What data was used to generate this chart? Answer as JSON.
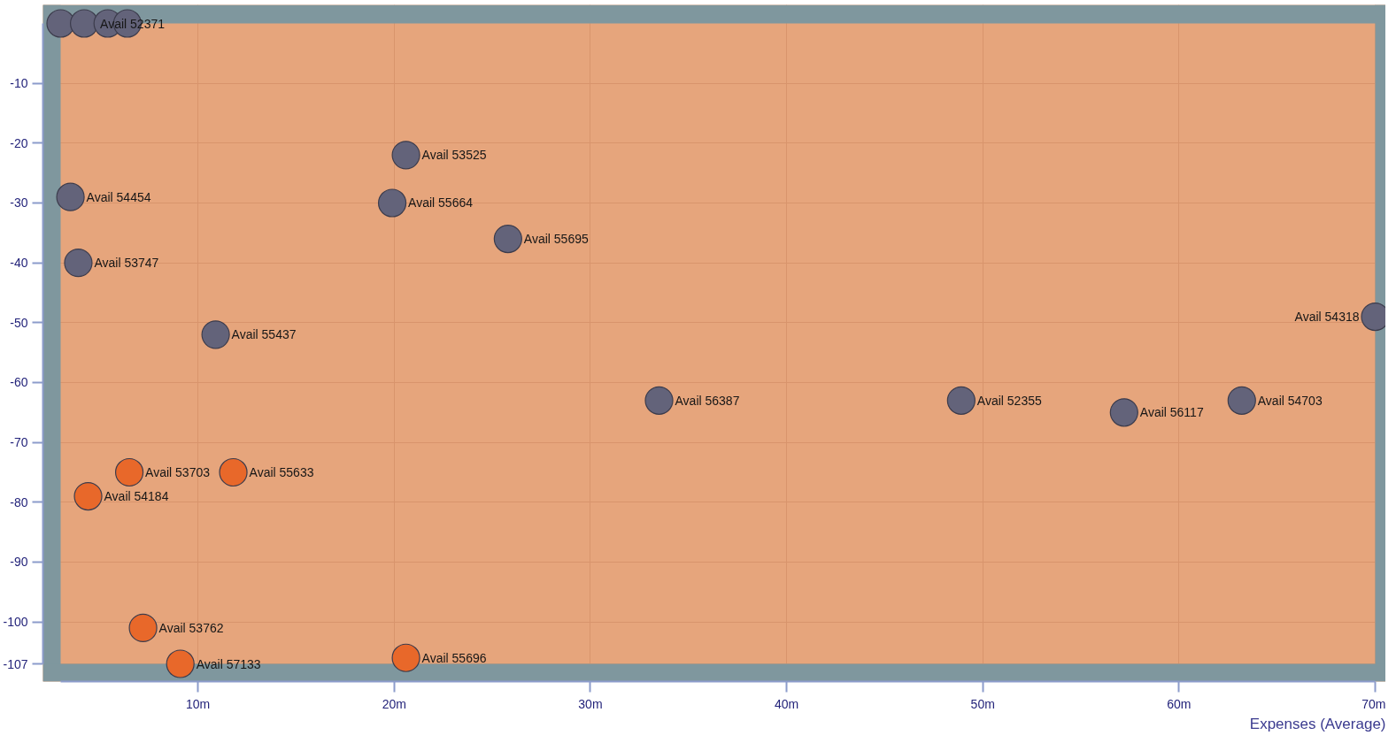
{
  "chart_data": {
    "type": "scatter",
    "xlabel": "Expenses (Average)",
    "marker": "circle",
    "grid": true,
    "xlim": [
      3,
      70
    ],
    "ylim": [
      -107,
      0
    ],
    "xticks": [
      {
        "value": 10,
        "label": "10m"
      },
      {
        "value": 20,
        "label": "20m"
      },
      {
        "value": 30,
        "label": "30m"
      },
      {
        "value": 40,
        "label": "40m"
      },
      {
        "value": 50,
        "label": "50m"
      },
      {
        "value": 60,
        "label": "60m"
      },
      {
        "value": 70,
        "label": "70m"
      }
    ],
    "yticks": [
      -10,
      -20,
      -30,
      -40,
      -50,
      -60,
      -70,
      -80,
      -90,
      -100,
      -107
    ],
    "series": [
      {
        "color": "#63637a",
        "x": [
          3.0,
          4.2,
          5.4,
          6.4,
          20.6,
          3.5,
          19.9,
          25.8,
          3.9,
          10.9,
          70.0,
          33.5,
          48.9,
          57.2,
          63.2
        ],
        "values": [
          0,
          0,
          0,
          0,
          -22,
          -29,
          -30,
          -36,
          -40,
          -52,
          -49,
          -63,
          -63,
          -65,
          -63
        ],
        "value_labels": [
          null,
          "Avail 52371",
          null,
          null,
          "Avail 53525",
          "Avail 54454",
          "Avail 55664",
          "Avail 55695",
          "Avail 53747",
          "Avail 55437",
          "Avail 54318",
          "Avail 56387",
          "Avail 52355",
          "Avail 56117",
          "Avail 54703"
        ]
      },
      {
        "color": "#e8682a",
        "x": [
          6.5,
          11.8,
          4.4,
          7.2,
          9.1,
          20.6
        ],
        "values": [
          -75,
          -75,
          -79,
          -101,
          -107,
          -106
        ],
        "value_labels": [
          "Avail 53703",
          "Avail 55633",
          "Avail 54184",
          "Avail 53762",
          "Avail 57133",
          "Avail 55696"
        ]
      }
    ]
  }
}
